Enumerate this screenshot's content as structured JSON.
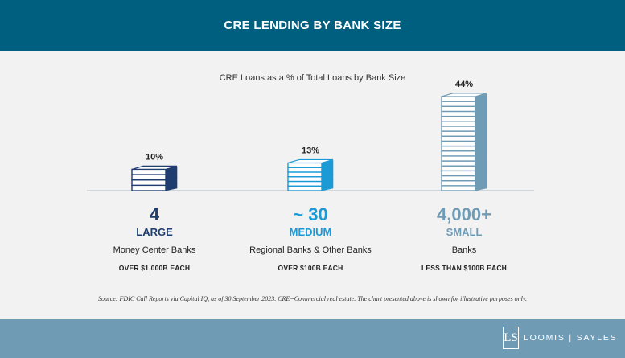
{
  "header": {
    "title": "CRE LENDING BY BANK SIZE"
  },
  "colors": {
    "header_bg": "#005f7f",
    "large": "#1f3d6e",
    "medium": "#1b9ad6",
    "small": "#6f9bb5",
    "footer_bg": "#6f9bb5"
  },
  "chart_data": {
    "type": "bar",
    "title": "CRE Loans as a % of Total Loans by Bank Size",
    "categories": [
      "LARGE",
      "MEDIUM",
      "SMALL"
    ],
    "values": [
      10,
      13,
      44
    ],
    "value_labels": [
      "10%",
      "13%",
      "44%"
    ],
    "unit": "%",
    "grid": false,
    "legend": "none"
  },
  "groups": [
    {
      "count": "4",
      "size": "LARGE",
      "kind": "Money Center Banks",
      "threshold": "OVER $1,000B  EACH",
      "color": "#1f3d6e"
    },
    {
      "count": "~ 30",
      "size": "MEDIUM",
      "kind": "Regional Banks & Other Banks",
      "threshold": "OVER $100B  EACH",
      "color": "#1b9ad6"
    },
    {
      "count": "4,000+",
      "size": "SMALL",
      "kind": "Banks",
      "threshold": "LESS THAN $100B  EACH",
      "color": "#6f9bb5"
    }
  ],
  "source": "Source: FDIC Call Reports via Capital IQ, as of 30 September 2023. CRE=Commercial real estate. The chart presented above is shown for illustrative purposes only.",
  "logo": {
    "icon": "ls-monogram-icon",
    "mark": "LS",
    "text": "LOOMIS | SAYLES"
  }
}
